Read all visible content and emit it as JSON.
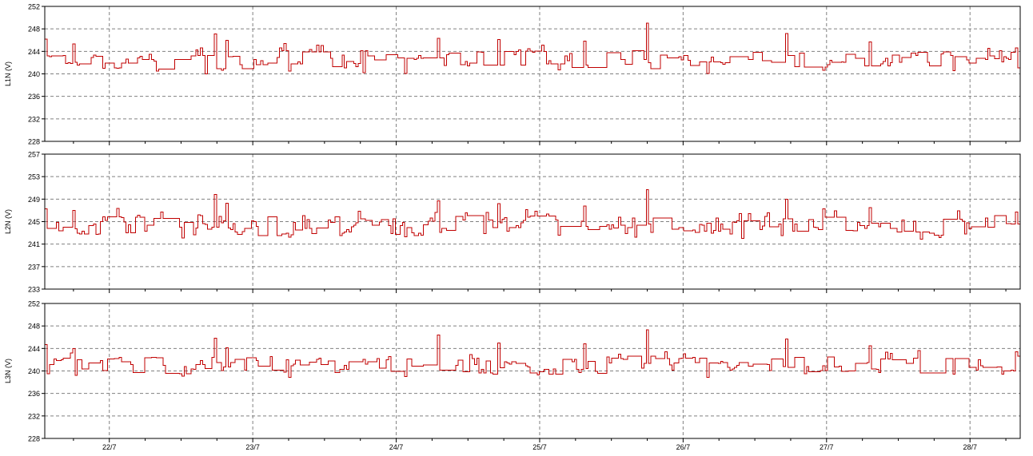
{
  "colors": {
    "series": "#c00000",
    "grid": "#808080",
    "frame": "#000000",
    "background": "#ffffff"
  },
  "chart_data": [
    {
      "type": "line",
      "ylabel": "L1N (V)",
      "ylim": [
        228,
        252
      ],
      "yticks": [
        "228",
        "232",
        "236",
        "240",
        "244",
        "248",
        "252"
      ],
      "xlim": [
        21.55,
        28.35
      ],
      "xticks": [
        22,
        23,
        24,
        25,
        26,
        27,
        28
      ],
      "xtick_labels": [
        "22/7",
        "23/7",
        "24/7",
        "25/7",
        "26/7",
        "27/7",
        "28/7"
      ],
      "grid": true,
      "step": true,
      "base": 242.5,
      "noise": 0.9,
      "seed": 11,
      "spikes": [
        {
          "x": 21.55,
          "y": 246.2
        },
        {
          "x": 21.75,
          "y": 245.3
        },
        {
          "x": 22.73,
          "y": 247.1
        },
        {
          "x": 22.82,
          "y": 246.0
        },
        {
          "x": 24.29,
          "y": 246.3
        },
        {
          "x": 24.71,
          "y": 246.1
        },
        {
          "x": 25.3,
          "y": 245.8
        },
        {
          "x": 25.74,
          "y": 249.0
        },
        {
          "x": 26.72,
          "y": 247.2
        },
        {
          "x": 27.3,
          "y": 245.7
        },
        {
          "x": 28.32,
          "y": 244.6
        }
      ],
      "dips": [
        {
          "x": 22.66,
          "y": 240.0
        },
        {
          "x": 23.25,
          "y": 240.5
        },
        {
          "x": 23.77,
          "y": 240.2
        },
        {
          "x": 24.06,
          "y": 240.1
        },
        {
          "x": 25.13,
          "y": 240.7
        },
        {
          "x": 26.17,
          "y": 240.1
        },
        {
          "x": 27.3,
          "y": 240.9
        },
        {
          "x": 27.88,
          "y": 240.6
        }
      ]
    },
    {
      "type": "line",
      "ylabel": "L2N (V)",
      "ylim": [
        233,
        257
      ],
      "yticks": [
        "233",
        "237",
        "241",
        "245",
        "249",
        "253",
        "257"
      ],
      "xlim": [
        21.55,
        28.35
      ],
      "xticks": [
        22,
        23,
        24,
        25,
        26,
        27,
        28
      ],
      "xtick_labels": [
        "22/7",
        "23/7",
        "24/7",
        "25/7",
        "26/7",
        "27/7",
        "28/7"
      ],
      "grid": true,
      "step": true,
      "base": 244.3,
      "noise": 1.0,
      "seed": 23,
      "spikes": [
        {
          "x": 21.55,
          "y": 247.3
        },
        {
          "x": 21.75,
          "y": 247.0
        },
        {
          "x": 22.73,
          "y": 249.8
        },
        {
          "x": 22.82,
          "y": 248.3
        },
        {
          "x": 24.29,
          "y": 248.7
        },
        {
          "x": 24.71,
          "y": 248.2
        },
        {
          "x": 25.3,
          "y": 247.8
        },
        {
          "x": 25.74,
          "y": 250.7
        },
        {
          "x": 26.72,
          "y": 249.0
        },
        {
          "x": 27.3,
          "y": 247.5
        },
        {
          "x": 28.32,
          "y": 246.7
        }
      ],
      "dips": [
        {
          "x": 22.51,
          "y": 242.1
        },
        {
          "x": 23.25,
          "y": 242.2
        },
        {
          "x": 24.06,
          "y": 242.3
        },
        {
          "x": 25.13,
          "y": 242.6
        },
        {
          "x": 25.66,
          "y": 242.2
        },
        {
          "x": 26.4,
          "y": 242.0
        },
        {
          "x": 27.3,
          "y": 241.9
        },
        {
          "x": 27.65,
          "y": 241.9
        }
      ]
    },
    {
      "type": "line",
      "ylabel": "L3N (V)",
      "ylim": [
        228,
        252
      ],
      "yticks": [
        "228",
        "232",
        "236",
        "240",
        "244",
        "248",
        "252"
      ],
      "xlim": [
        21.55,
        28.35
      ],
      "xticks": [
        22,
        23,
        24,
        25,
        26,
        27,
        28
      ],
      "xtick_labels": [
        "22/7",
        "23/7",
        "24/7",
        "25/7",
        "26/7",
        "27/7",
        "28/7"
      ],
      "grid": true,
      "step": true,
      "base": 241.0,
      "noise": 0.9,
      "seed": 37,
      "spikes": [
        {
          "x": 21.55,
          "y": 244.7
        },
        {
          "x": 21.75,
          "y": 244.0
        },
        {
          "x": 22.73,
          "y": 245.8
        },
        {
          "x": 22.82,
          "y": 244.1
        },
        {
          "x": 24.29,
          "y": 246.4
        },
        {
          "x": 24.71,
          "y": 245.0
        },
        {
          "x": 25.3,
          "y": 244.8
        },
        {
          "x": 25.74,
          "y": 247.3
        },
        {
          "x": 26.72,
          "y": 245.7
        },
        {
          "x": 27.3,
          "y": 244.5
        },
        {
          "x": 28.32,
          "y": 243.4
        }
      ],
      "dips": [
        {
          "x": 21.76,
          "y": 239.2
        },
        {
          "x": 22.51,
          "y": 239.1
        },
        {
          "x": 23.25,
          "y": 238.9
        },
        {
          "x": 24.06,
          "y": 239.0
        },
        {
          "x": 26.17,
          "y": 238.9
        },
        {
          "x": 26.85,
          "y": 239.5
        },
        {
          "x": 27.88,
          "y": 239.4
        }
      ]
    }
  ]
}
